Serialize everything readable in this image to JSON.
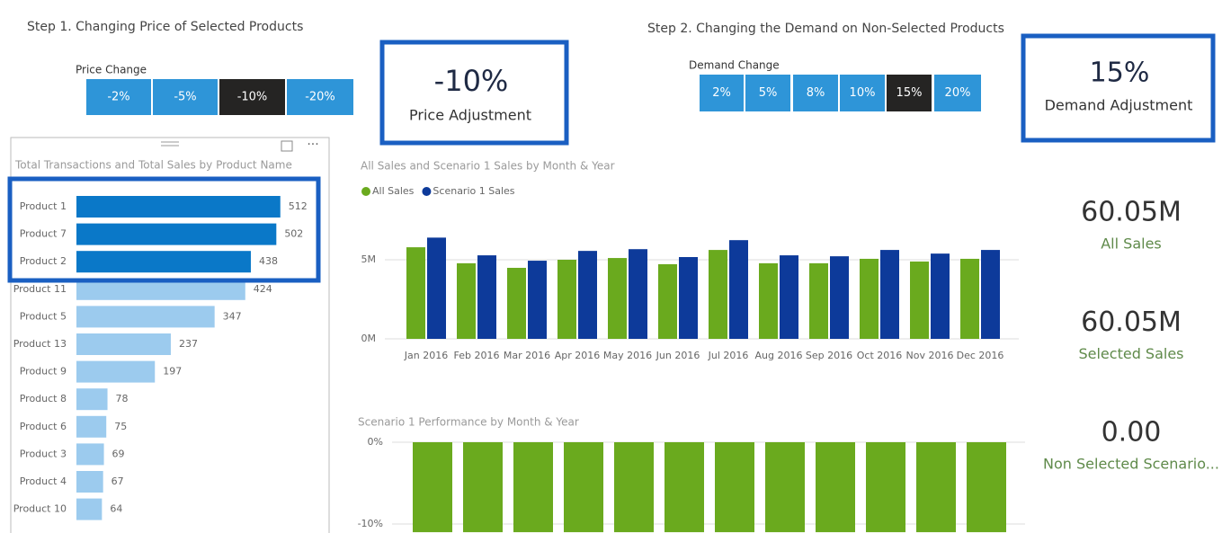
{
  "step1": {
    "title": "Step 1. Changing Price of Selected Products",
    "slicer_label": "Price Change",
    "options": [
      "-2%",
      "-5%",
      "-10%",
      "-20%"
    ],
    "selected": 2
  },
  "price_card": {
    "value": "-10%",
    "label": "Price Adjustment"
  },
  "step2": {
    "title": "Step 2. Changing the Demand on Non-Selected Products",
    "slicer_label": "Demand Change",
    "options": [
      "2%",
      "5%",
      "8%",
      "10%",
      "15%",
      "20%"
    ],
    "selected": 4
  },
  "demand_card": {
    "value": "15%",
    "label": "Demand Adjustment"
  },
  "kpis": [
    {
      "value": "60.05M",
      "label": "All Sales"
    },
    {
      "value": "60.05M",
      "label": "Selected Sales"
    },
    {
      "value": "0.00",
      "label": "Non Selected Scenario..."
    }
  ],
  "chart_data": [
    {
      "type": "bar",
      "orientation": "horizontal",
      "title": "Total Transactions and Total Sales by Product Name",
      "categories": [
        "Product 1",
        "Product 7",
        "Product 2",
        "Product 11",
        "Product 5",
        "Product 13",
        "Product 9",
        "Product 8",
        "Product 6",
        "Product 3",
        "Product 4",
        "Product 10"
      ],
      "values": [
        512,
        502,
        438,
        424,
        347,
        237,
        197,
        78,
        75,
        69,
        67,
        64
      ],
      "colors": [
        "#0a78c8",
        "#0a78c8",
        "#0a78c8",
        "#9ccbee",
        "#9ccbee",
        "#9ccbee",
        "#9ccbee",
        "#9ccbee",
        "#9ccbee",
        "#9ccbee",
        "#9ccbee",
        "#9ccbee"
      ],
      "xlim": [
        0,
        560
      ]
    },
    {
      "type": "bar",
      "orientation": "vertical",
      "title": "All Sales and Scenario 1 Sales by Month & Year",
      "categories": [
        "Jan 2016",
        "Feb 2016",
        "Mar 2016",
        "Apr 2016",
        "May 2016",
        "Jun 2016",
        "Jul 2016",
        "Aug 2016",
        "Sep 2016",
        "Oct 2016",
        "Nov 2016",
        "Dec 2016"
      ],
      "series": [
        {
          "name": "All Sales",
          "color": "#6aaa1e",
          "values": [
            5790000,
            4780000,
            4490000,
            5000000,
            5110000,
            4720000,
            5620000,
            4780000,
            4780000,
            5060000,
            4890000,
            5060000
          ]
        },
        {
          "name": "Scenario 1 Sales",
          "color": "#0d3a9a",
          "values": [
            6400000,
            5280000,
            4940000,
            5560000,
            5670000,
            5170000,
            6240000,
            5280000,
            5220000,
            5620000,
            5390000,
            5620000
          ]
        }
      ],
      "ylim": [
        0,
        7500000
      ],
      "yticks": [
        {
          "value": 0,
          "label": "0M"
        },
        {
          "value": 5000000,
          "label": "5M"
        }
      ]
    },
    {
      "type": "bar",
      "orientation": "vertical",
      "title": "Scenario 1 Performance by Month & Year",
      "series": [
        {
          "color": "#6aaa1e",
          "values": [
            -11,
            -11,
            -11,
            -11,
            -11,
            -11,
            -11,
            -11,
            -11,
            -11,
            -11,
            -11
          ]
        }
      ],
      "ylim": [
        -11,
        0
      ],
      "yticks": [
        {
          "value": 0,
          "label": "0%"
        },
        {
          "value": -10,
          "label": "-10%"
        }
      ]
    }
  ]
}
